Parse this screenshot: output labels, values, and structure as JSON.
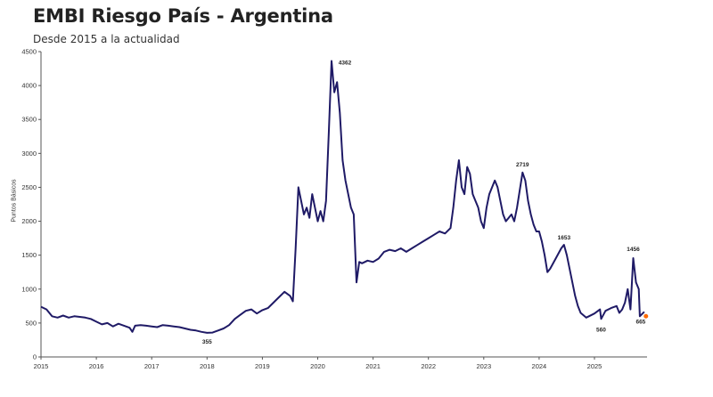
{
  "header": {
    "title": "EMBI Riesgo País - Argentina",
    "subtitle": "Desde 2015 a la actualidad"
  },
  "chart_data": {
    "type": "line",
    "title": "EMBI Riesgo País - Argentina",
    "subtitle": "Desde 2015 a la actualidad",
    "xlabel": "",
    "ylabel": "Puntos Básicos",
    "xlim": [
      2015,
      2025.95
    ],
    "ylim": [
      0,
      4500
    ],
    "yticks": [
      0,
      500,
      1000,
      1500,
      2000,
      2500,
      3000,
      3500,
      4000,
      4500
    ],
    "xticks": [
      "2015",
      "2016",
      "2017",
      "2018",
      "2019",
      "2020",
      "2021",
      "2022",
      "2023",
      "2024",
      "2025"
    ],
    "grid": false,
    "legend": "none",
    "line_color": "#1f1a66",
    "series": [
      {
        "points": [
          [
            2015.0,
            740
          ],
          [
            2015.1,
            700
          ],
          [
            2015.2,
            600
          ],
          [
            2015.3,
            580
          ],
          [
            2015.4,
            610
          ],
          [
            2015.5,
            580
          ],
          [
            2015.6,
            600
          ],
          [
            2015.7,
            590
          ],
          [
            2015.8,
            580
          ],
          [
            2015.9,
            560
          ],
          [
            2016.0,
            520
          ],
          [
            2016.1,
            480
          ],
          [
            2016.2,
            500
          ],
          [
            2016.3,
            450
          ],
          [
            2016.4,
            490
          ],
          [
            2016.5,
            460
          ],
          [
            2016.6,
            430
          ],
          [
            2016.65,
            370
          ],
          [
            2016.7,
            460
          ],
          [
            2016.8,
            470
          ],
          [
            2016.9,
            460
          ],
          [
            2017.0,
            450
          ],
          [
            2017.1,
            440
          ],
          [
            2017.2,
            470
          ],
          [
            2017.3,
            460
          ],
          [
            2017.4,
            450
          ],
          [
            2017.5,
            440
          ],
          [
            2017.6,
            420
          ],
          [
            2017.7,
            400
          ],
          [
            2017.8,
            390
          ],
          [
            2017.9,
            370
          ],
          [
            2018.0,
            355
          ],
          [
            2018.1,
            360
          ],
          [
            2018.2,
            390
          ],
          [
            2018.3,
            420
          ],
          [
            2018.4,
            470
          ],
          [
            2018.5,
            560
          ],
          [
            2018.6,
            620
          ],
          [
            2018.7,
            680
          ],
          [
            2018.8,
            700
          ],
          [
            2018.9,
            640
          ],
          [
            2019.0,
            690
          ],
          [
            2019.1,
            720
          ],
          [
            2019.2,
            800
          ],
          [
            2019.3,
            880
          ],
          [
            2019.4,
            960
          ],
          [
            2019.5,
            900
          ],
          [
            2019.55,
            820
          ],
          [
            2019.6,
            1600
          ],
          [
            2019.65,
            2500
          ],
          [
            2019.7,
            2300
          ],
          [
            2019.75,
            2100
          ],
          [
            2019.8,
            2200
          ],
          [
            2019.85,
            2050
          ],
          [
            2019.9,
            2400
          ],
          [
            2019.95,
            2200
          ],
          [
            2020.0,
            2000
          ],
          [
            2020.05,
            2150
          ],
          [
            2020.1,
            2000
          ],
          [
            2020.15,
            2300
          ],
          [
            2020.2,
            3300
          ],
          [
            2020.25,
            4362
          ],
          [
            2020.3,
            3900
          ],
          [
            2020.35,
            4050
          ],
          [
            2020.4,
            3600
          ],
          [
            2020.45,
            2900
          ],
          [
            2020.5,
            2600
          ],
          [
            2020.55,
            2400
          ],
          [
            2020.6,
            2200
          ],
          [
            2020.65,
            2100
          ],
          [
            2020.7,
            1100
          ],
          [
            2020.75,
            1400
          ],
          [
            2020.8,
            1380
          ],
          [
            2020.9,
            1420
          ],
          [
            2021.0,
            1400
          ],
          [
            2021.1,
            1450
          ],
          [
            2021.2,
            1550
          ],
          [
            2021.3,
            1580
          ],
          [
            2021.4,
            1560
          ],
          [
            2021.5,
            1600
          ],
          [
            2021.6,
            1550
          ],
          [
            2021.7,
            1600
          ],
          [
            2021.8,
            1650
          ],
          [
            2021.9,
            1700
          ],
          [
            2022.0,
            1750
          ],
          [
            2022.1,
            1800
          ],
          [
            2022.2,
            1850
          ],
          [
            2022.3,
            1820
          ],
          [
            2022.4,
            1900
          ],
          [
            2022.45,
            2200
          ],
          [
            2022.5,
            2600
          ],
          [
            2022.55,
            2900
          ],
          [
            2022.6,
            2500
          ],
          [
            2022.65,
            2400
          ],
          [
            2022.7,
            2800
          ],
          [
            2022.75,
            2700
          ],
          [
            2022.8,
            2400
          ],
          [
            2022.85,
            2300
          ],
          [
            2022.9,
            2200
          ],
          [
            2022.95,
            2000
          ],
          [
            2023.0,
            1900
          ],
          [
            2023.05,
            2200
          ],
          [
            2023.1,
            2400
          ],
          [
            2023.2,
            2600
          ],
          [
            2023.25,
            2500
          ],
          [
            2023.3,
            2300
          ],
          [
            2023.35,
            2100
          ],
          [
            2023.4,
            2000
          ],
          [
            2023.5,
            2100
          ],
          [
            2023.55,
            2000
          ],
          [
            2023.6,
            2200
          ],
          [
            2023.7,
            2719
          ],
          [
            2023.75,
            2600
          ],
          [
            2023.8,
            2300
          ],
          [
            2023.85,
            2100
          ],
          [
            2023.9,
            1950
          ],
          [
            2023.95,
            1850
          ],
          [
            2024.0,
            1850
          ],
          [
            2024.05,
            1700
          ],
          [
            2024.1,
            1500
          ],
          [
            2024.15,
            1250
          ],
          [
            2024.2,
            1300
          ],
          [
            2024.3,
            1450
          ],
          [
            2024.4,
            1600
          ],
          [
            2024.45,
            1653
          ],
          [
            2024.5,
            1500
          ],
          [
            2024.55,
            1300
          ],
          [
            2024.6,
            1100
          ],
          [
            2024.65,
            900
          ],
          [
            2024.7,
            750
          ],
          [
            2024.75,
            650
          ],
          [
            2024.85,
            580
          ],
          [
            2024.9,
            600
          ],
          [
            2025.0,
            640
          ],
          [
            2025.1,
            700
          ],
          [
            2025.12,
            560
          ],
          [
            2025.2,
            680
          ],
          [
            2025.3,
            720
          ],
          [
            2025.4,
            750
          ],
          [
            2025.45,
            650
          ],
          [
            2025.5,
            700
          ],
          [
            2025.55,
            800
          ],
          [
            2025.6,
            1000
          ],
          [
            2025.65,
            700
          ],
          [
            2025.7,
            1456
          ],
          [
            2025.75,
            1100
          ],
          [
            2025.8,
            1000
          ],
          [
            2025.82,
            600
          ],
          [
            2025.9,
            665
          ]
        ]
      }
    ],
    "annotations": [
      {
        "label": "355",
        "x": 2018.0,
        "y": 355
      },
      {
        "label": "4362",
        "x": 2020.25,
        "y": 4362
      },
      {
        "label": "2719",
        "x": 2023.7,
        "y": 2719
      },
      {
        "label": "1653",
        "x": 2024.45,
        "y": 1653
      },
      {
        "label": "560",
        "x": 2025.12,
        "y": 560
      },
      {
        "label": "1456",
        "x": 2025.7,
        "y": 1456
      },
      {
        "label": "665",
        "x": 2025.9,
        "y": 665
      }
    ],
    "marker": {
      "x": 2025.93,
      "y": 600,
      "color": "#ff6a00"
    }
  }
}
